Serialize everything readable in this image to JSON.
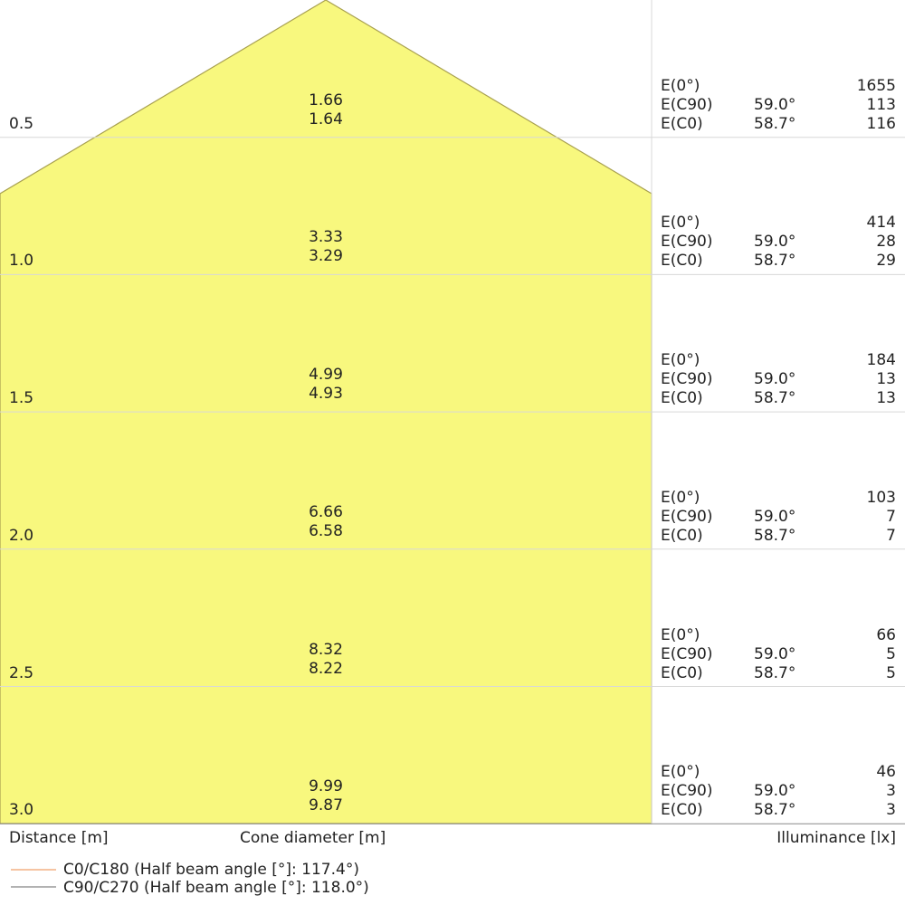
{
  "colors": {
    "cone_fill": "#f8f87e",
    "cone_edge": "#a8a050",
    "grid": "#d8d8d8",
    "c0_line": "#f4b183",
    "c90_line": "#999999"
  },
  "rows": [
    {
      "distance": "0.5",
      "d_c90": "1.66",
      "d_c0": "1.64",
      "e0": "1655",
      "e_c90": "113",
      "e_c0": "116"
    },
    {
      "distance": "1.0",
      "d_c90": "3.33",
      "d_c0": "3.29",
      "e0": "414",
      "e_c90": "28",
      "e_c0": "29"
    },
    {
      "distance": "1.5",
      "d_c90": "4.99",
      "d_c0": "4.93",
      "e0": "184",
      "e_c90": "13",
      "e_c0": "13"
    },
    {
      "distance": "2.0",
      "d_c90": "6.66",
      "d_c0": "6.58",
      "e0": "103",
      "e_c90": "7",
      "e_c0": "7"
    },
    {
      "distance": "2.5",
      "d_c90": "8.32",
      "d_c0": "8.22",
      "e0": "66",
      "e_c90": "5",
      "e_c0": "5"
    },
    {
      "distance": "3.0",
      "d_c90": "9.99",
      "d_c0": "9.87",
      "e0": "46",
      "e_c90": "3",
      "e_c0": "3"
    }
  ],
  "labels": {
    "e0": "E(0°)",
    "e_c90": "E(C90)",
    "e_c0": "E(C0)",
    "angle_c90": "59.0°",
    "angle_c0": "58.7°"
  },
  "axis": {
    "distance": "Distance [m]",
    "cone": "Cone diameter [m]",
    "illuminance": "Illuminance [lx]"
  },
  "legend": [
    {
      "label": "C0/C180 (Half beam angle [°]: 117.4°)"
    },
    {
      "label": "C90/C270 (Half beam angle [°]: 118.0°)"
    }
  ]
}
